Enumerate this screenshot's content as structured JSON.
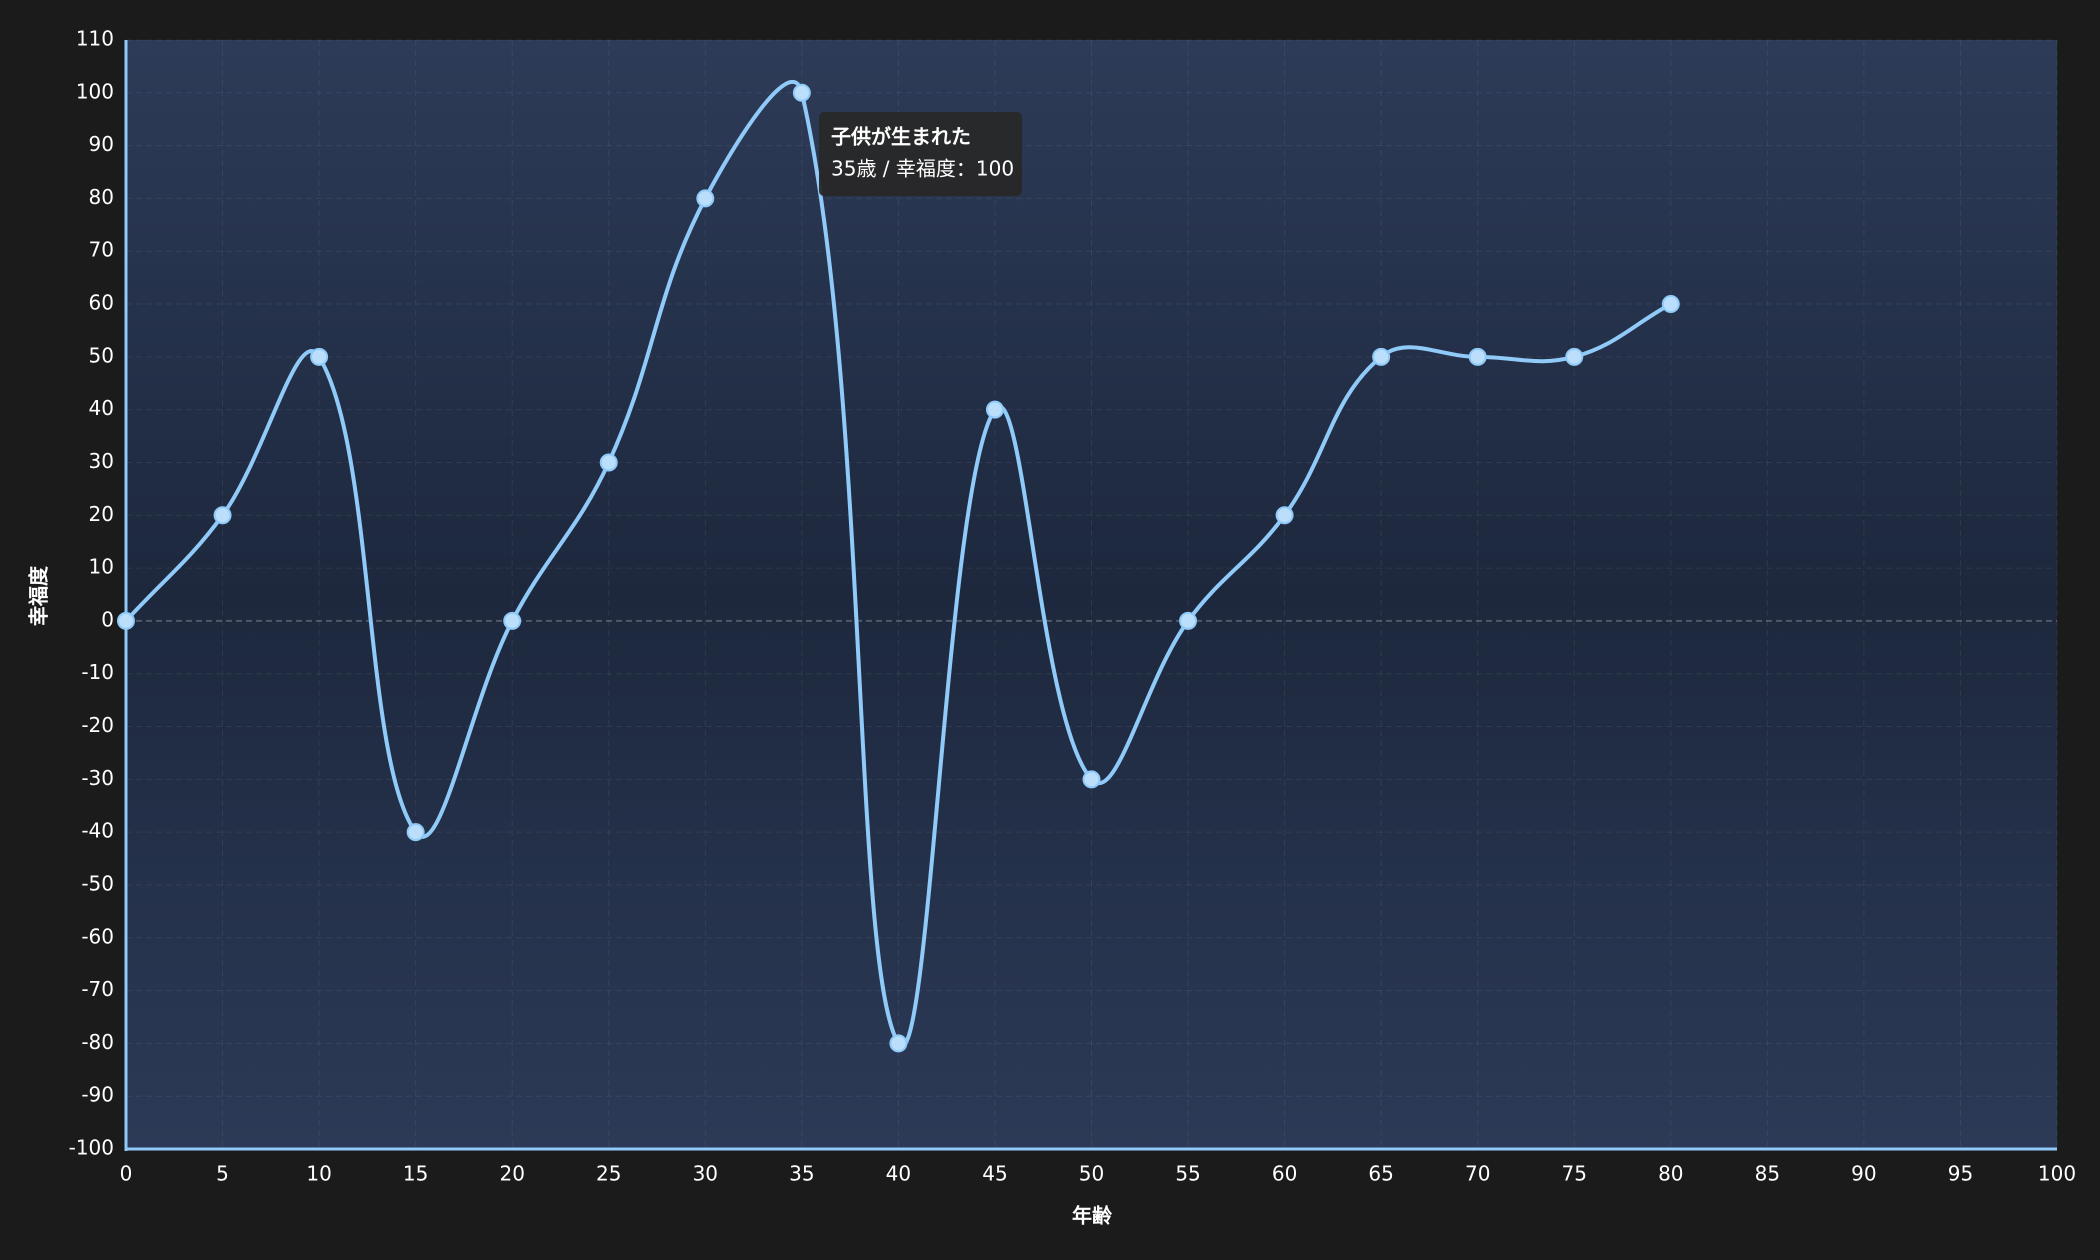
{
  "chart_data": {
    "type": "line",
    "xlabel": "年齢",
    "ylabel": "幸福度",
    "x": [
      0,
      5,
      10,
      15,
      20,
      25,
      30,
      35,
      40,
      45,
      50,
      55,
      60,
      65,
      70,
      75,
      80
    ],
    "series": [
      {
        "color": "#90caf9",
        "values": [
          0,
          20,
          50,
          -40,
          0,
          30,
          80,
          100,
          -80,
          40,
          -30,
          0,
          20,
          50,
          50,
          50,
          60
        ]
      }
    ],
    "xlim": [
      0,
      100
    ],
    "xticks": [
      0,
      5,
      10,
      15,
      20,
      25,
      30,
      35,
      40,
      45,
      50,
      55,
      60,
      65,
      70,
      75,
      80,
      85,
      90,
      95,
      100
    ],
    "ylim": [
      -100,
      110
    ],
    "yticks": [
      -100,
      -90,
      -80,
      -70,
      -60,
      -50,
      -40,
      -30,
      -20,
      -10,
      0,
      10,
      20,
      30,
      40,
      50,
      60,
      70,
      80,
      90,
      100,
      110
    ],
    "grid": true,
    "tooltip": {
      "title": "子供が生まれた",
      "body": "35歳 / 幸福度：100"
    }
  }
}
